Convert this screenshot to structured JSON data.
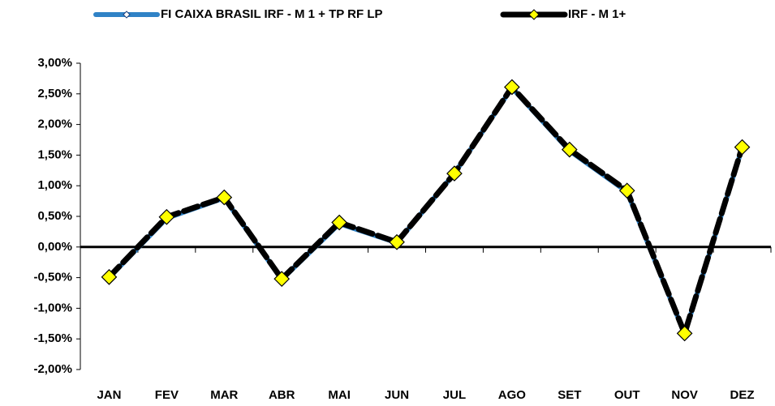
{
  "chart_data": {
    "type": "line",
    "categories": [
      "JAN",
      "FEV",
      "MAR",
      "ABR",
      "MAI",
      "JUN",
      "JUL",
      "AGO",
      "SET",
      "OUT",
      "NOV",
      "DEZ"
    ],
    "series": [
      {
        "name": "FI CAIXA BRASIL IRF - M 1 + TP RF LP",
        "color": "#2f82c6",
        "marker_color": "#ffffff",
        "values": [
          -0.5,
          0.47,
          0.8,
          -0.53,
          0.38,
          0.07,
          1.2,
          2.6,
          1.57,
          0.9,
          -1.42,
          1.62
        ]
      },
      {
        "name": "IRF - M 1+",
        "color": "#000000",
        "marker_color": "#ffff00",
        "values": [
          -0.49,
          0.49,
          0.81,
          -0.52,
          0.4,
          0.08,
          1.2,
          2.61,
          1.59,
          0.92,
          -1.41,
          1.63
        ]
      }
    ],
    "ylim": [
      -2,
      3
    ],
    "yticks": [
      {
        "value": -2,
        "label": "-2,00%"
      },
      {
        "value": -1.5,
        "label": "-1,50%"
      },
      {
        "value": -1,
        "label": "-1,00%"
      },
      {
        "value": -0.5,
        "label": "-0,50%"
      },
      {
        "value": 0,
        "label": "0,00%"
      },
      {
        "value": 0.5,
        "label": "0,50%"
      },
      {
        "value": 1,
        "label": "1,00%"
      },
      {
        "value": 1.5,
        "label": "1,50%"
      },
      {
        "value": 2,
        "label": "2,00%"
      },
      {
        "value": 2.5,
        "label": "2,50%"
      },
      {
        "value": 3,
        "label": "3,00%"
      }
    ],
    "grid": false
  }
}
